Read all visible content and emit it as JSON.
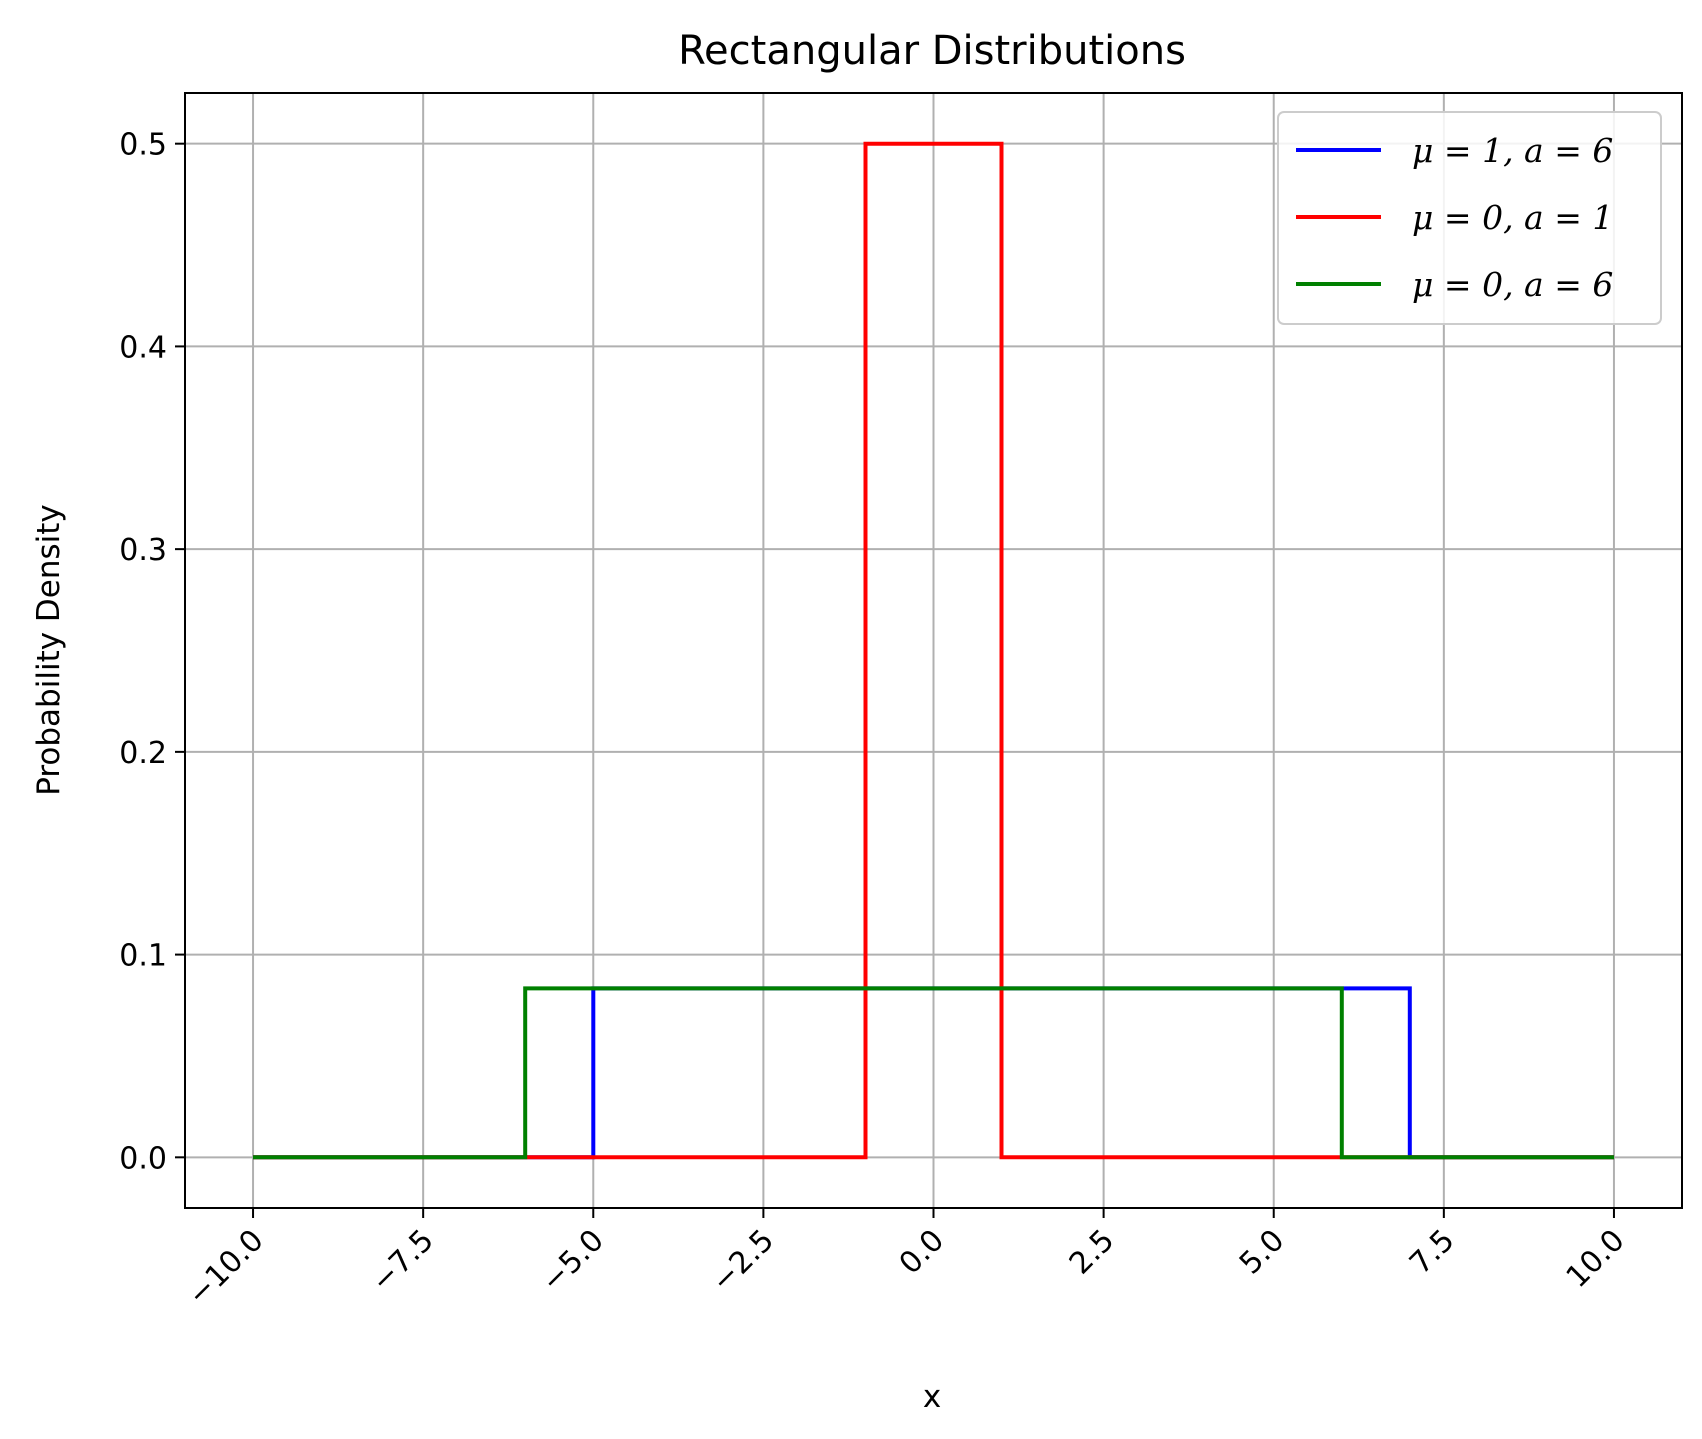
{
  "chart_data": {
    "type": "line",
    "title": "Rectangular Distributions",
    "xlabel": "x",
    "ylabel": "Probability Density",
    "xlim": [
      -11,
      11
    ],
    "ylim": [
      -0.025,
      0.525
    ],
    "grid": true,
    "legend_position": "top-right",
    "x_ticks": [
      -10.0,
      -7.5,
      -5.0,
      -2.5,
      0.0,
      2.5,
      5.0,
      7.5,
      10.0
    ],
    "x_tick_labels": [
      "−10.0",
      "−7.5",
      "−5.0",
      "−2.5",
      "0.0",
      "2.5",
      "5.0",
      "7.5",
      "10.0"
    ],
    "y_ticks": [
      0.0,
      0.1,
      0.2,
      0.3,
      0.4,
      0.5
    ],
    "y_tick_labels": [
      "0.0",
      "0.1",
      "0.2",
      "0.3",
      "0.4",
      "0.5"
    ],
    "series": [
      {
        "name": "μ = 1, a = 6",
        "color": "#0000ff",
        "points": [
          [
            -10,
            0
          ],
          [
            -5,
            0
          ],
          [
            -5,
            0.0833
          ],
          [
            7,
            0.0833
          ],
          [
            7,
            0
          ],
          [
            10,
            0
          ]
        ]
      },
      {
        "name": "μ = 0, a = 1",
        "color": "#ff0000",
        "points": [
          [
            -10,
            0
          ],
          [
            -1,
            0
          ],
          [
            -1,
            0.5
          ],
          [
            1,
            0.5
          ],
          [
            1,
            0
          ],
          [
            10,
            0
          ]
        ]
      },
      {
        "name": "μ = 0, a = 6",
        "color": "#008000",
        "points": [
          [
            -10,
            0
          ],
          [
            -6,
            0
          ],
          [
            -6,
            0.0833
          ],
          [
            6,
            0.0833
          ],
          [
            6,
            0
          ],
          [
            10,
            0
          ]
        ]
      }
    ]
  }
}
